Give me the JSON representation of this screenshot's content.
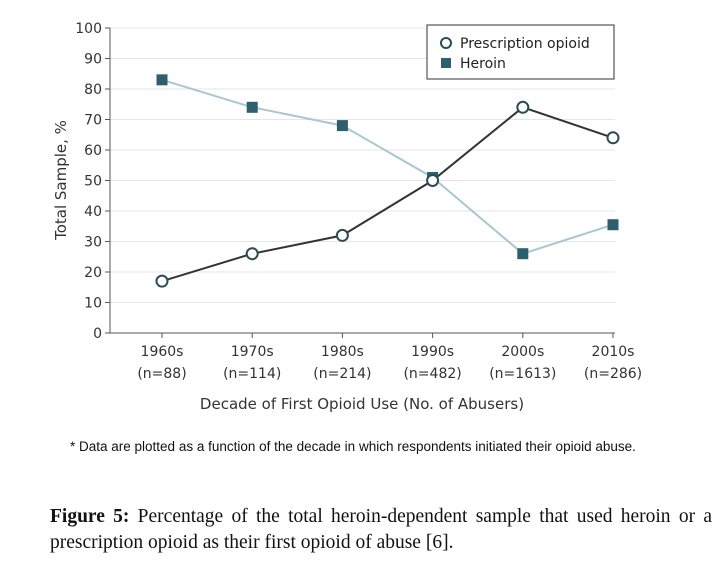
{
  "chart_data": {
    "type": "line",
    "categories": [
      "1960s",
      "1970s",
      "1980s",
      "1990s",
      "2000s",
      "2010s"
    ],
    "category_sublabels": [
      "(n=88)",
      "(n=114)",
      "(n=214)",
      "(n=482)",
      "(n=1613)",
      "(n=286)"
    ],
    "series": [
      {
        "name": "Prescription opioid",
        "values": [
          17,
          26,
          32,
          50,
          74,
          64
        ],
        "color": "#333333",
        "marker": "circle-open"
      },
      {
        "name": "Heroin",
        "values": [
          83,
          74,
          68,
          51,
          26,
          35.5
        ],
        "color": "#2d5f6e",
        "line_color": "#a9c7d1",
        "marker": "square-filled"
      }
    ],
    "xlabel": "Decade of First Opioid Use (No. of Abusers)",
    "ylabel": "Total Sample, %",
    "ylim": [
      0,
      100
    ],
    "yticks": [
      "0",
      "10",
      "20",
      "30",
      "40",
      "50",
      "60",
      "70",
      "80",
      "90",
      "100"
    ],
    "grid": true,
    "legend": "top-right"
  },
  "footnote": "* Data are plotted as a function of the decade in which respondents initiated their opioid abuse.",
  "caption": {
    "label": "Figure 5:",
    "text": " Percentage of the total heroin-dependent sample that used heroin or a prescription opioid as their first opioid of abuse [6]."
  }
}
